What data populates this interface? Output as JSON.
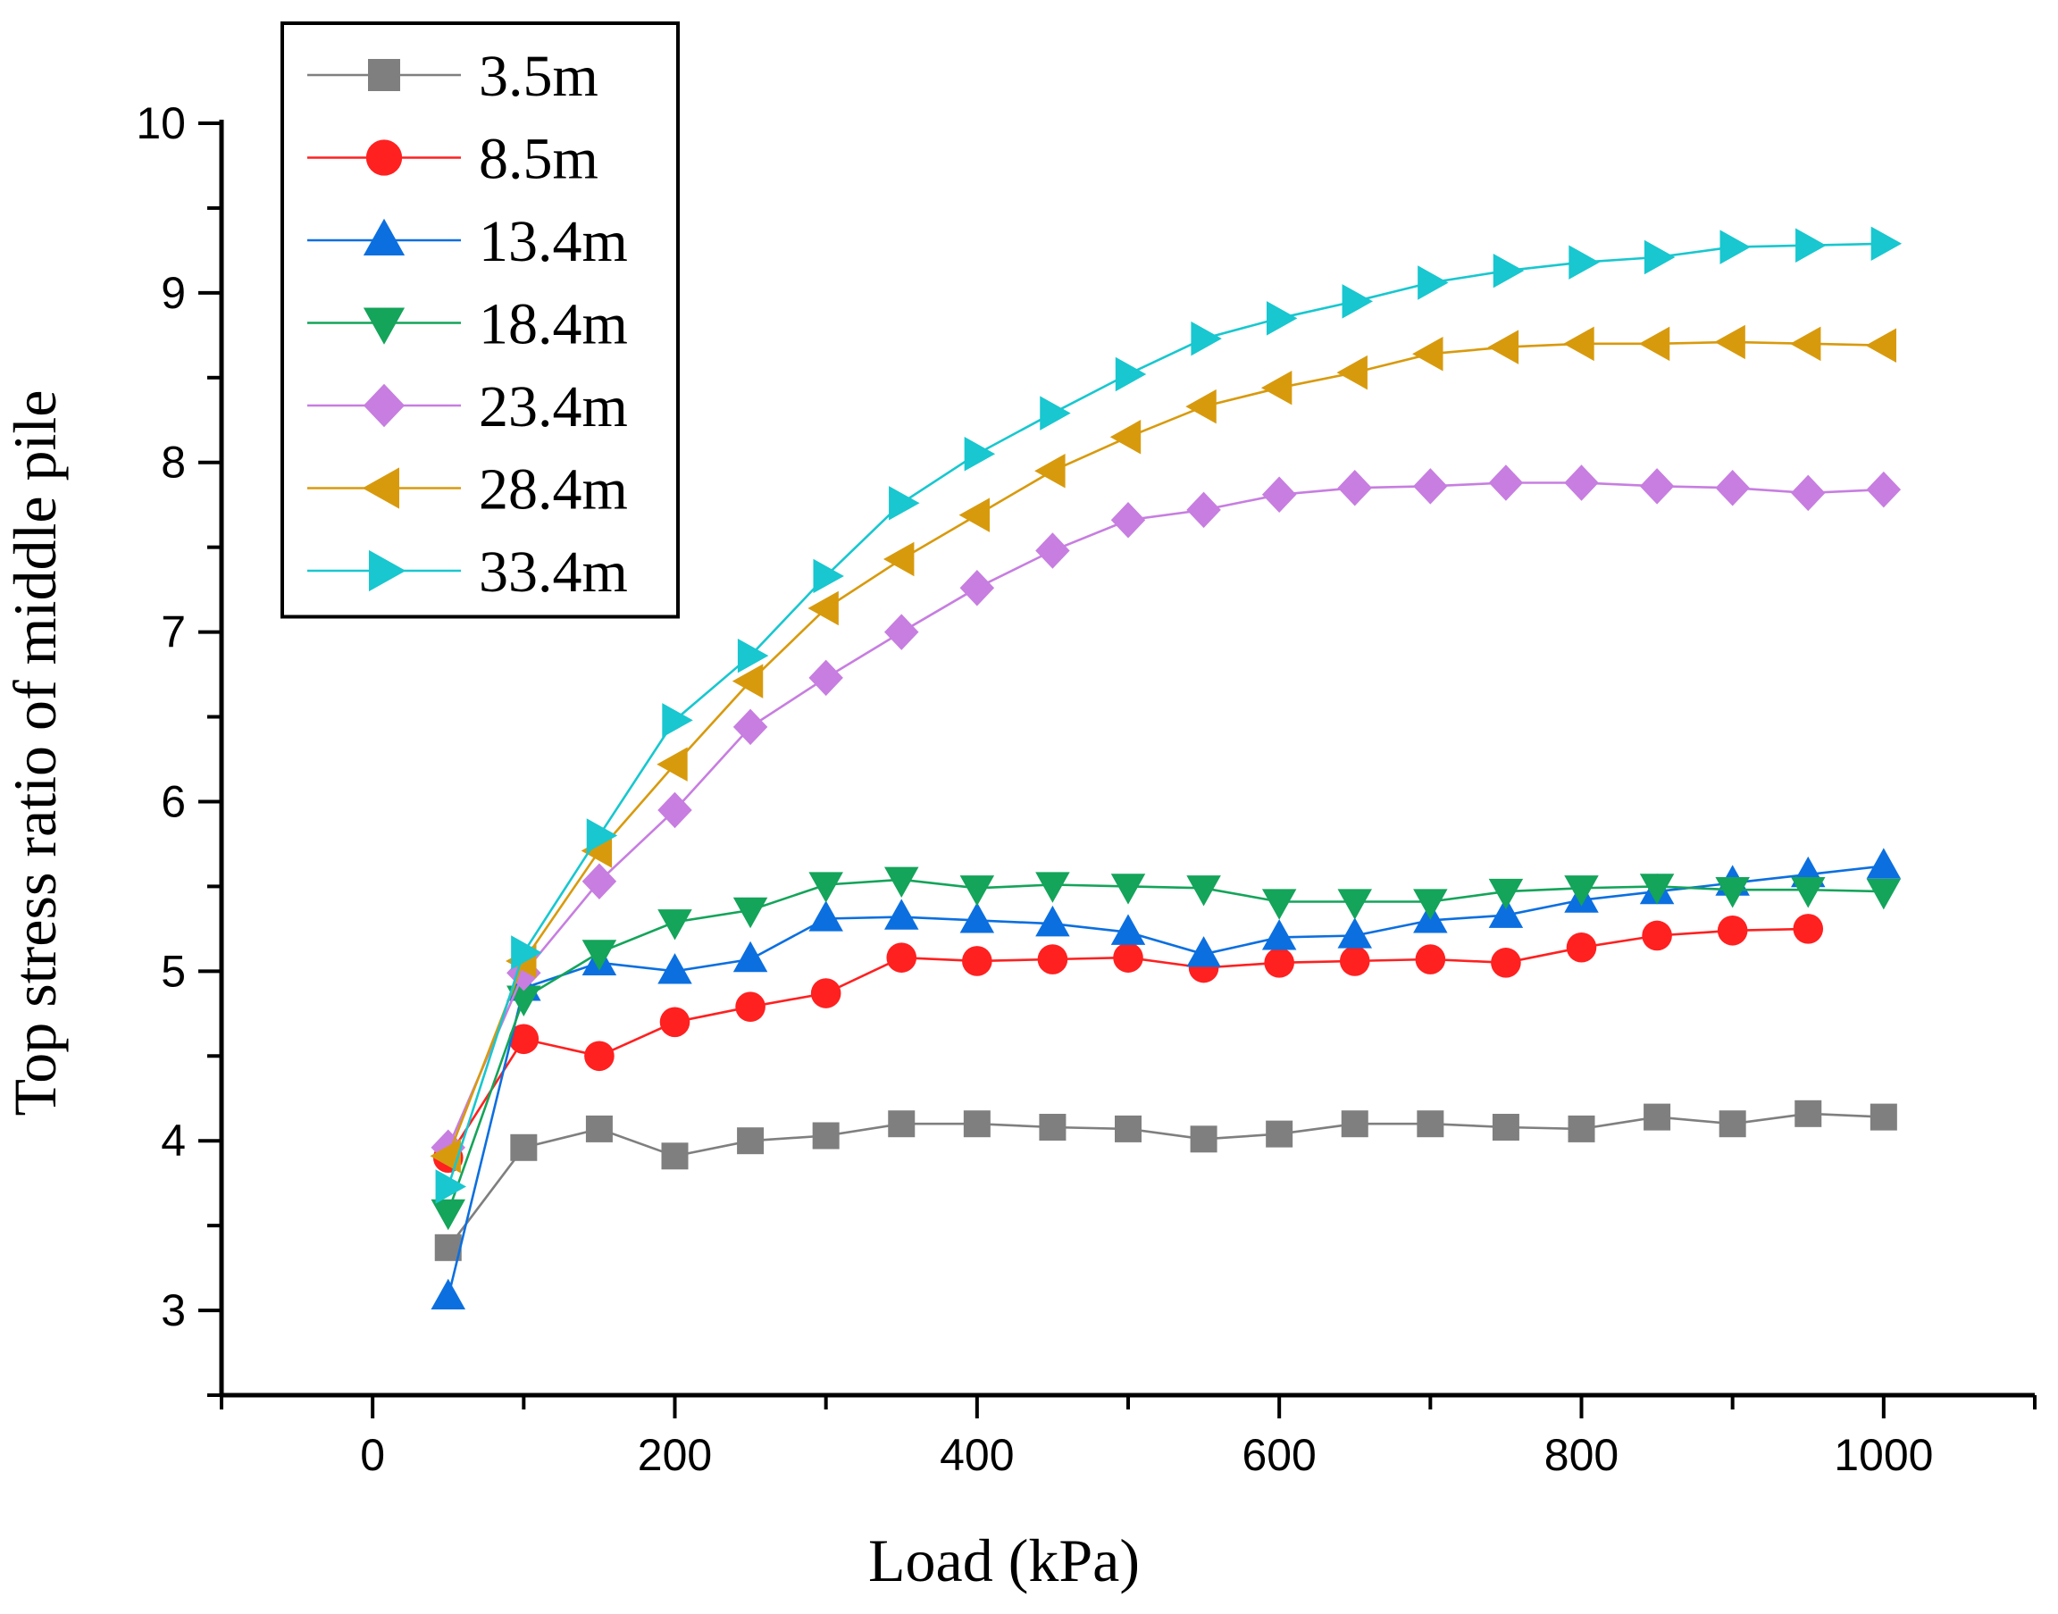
{
  "chart_data": {
    "type": "line",
    "title": "",
    "xlabel": "Load (kPa)",
    "ylabel": "Top stress ratio of middle pile",
    "xlim": [
      -100,
      1100
    ],
    "ylim": [
      2.5,
      10
    ],
    "xticks": [
      0,
      200,
      400,
      600,
      800,
      1000
    ],
    "yticks": [
      3,
      4,
      5,
      6,
      7,
      8,
      9,
      10
    ],
    "legend_position": "top-left",
    "x": [
      50,
      100,
      150,
      200,
      250,
      300,
      350,
      400,
      450,
      500,
      550,
      600,
      650,
      700,
      750,
      800,
      850,
      900,
      950,
      1000
    ],
    "series": [
      {
        "name": "3.5m",
        "color": "#7f7f7f",
        "marker": "square",
        "values": [
          3.37,
          3.96,
          4.07,
          3.91,
          4.0,
          4.03,
          4.1,
          4.1,
          4.08,
          4.07,
          4.01,
          4.04,
          4.1,
          4.1,
          4.08,
          4.07,
          4.14,
          4.1,
          4.16,
          4.14
        ]
      },
      {
        "name": "8.5m",
        "color": "#ff2020",
        "marker": "circle",
        "values": [
          3.9,
          4.6,
          4.5,
          4.7,
          4.79,
          4.87,
          5.08,
          5.06,
          5.07,
          5.08,
          5.02,
          5.05,
          5.06,
          5.07,
          5.05,
          5.14,
          5.21,
          5.24,
          5.25,
          null
        ]
      },
      {
        "name": "13.4m",
        "color": "#0b6fe0",
        "marker": "triangle-up",
        "values": [
          3.08,
          4.9,
          5.05,
          5.0,
          5.07,
          5.31,
          5.32,
          5.3,
          5.28,
          5.23,
          5.1,
          5.2,
          5.21,
          5.3,
          5.33,
          5.42,
          5.47,
          5.52,
          5.57,
          5.62
        ]
      },
      {
        "name": "18.4m",
        "color": "#14a45a",
        "marker": "triangle-down",
        "values": [
          3.58,
          4.84,
          5.11,
          5.29,
          5.36,
          5.51,
          5.54,
          5.49,
          5.51,
          5.5,
          5.49,
          5.41,
          5.41,
          5.41,
          5.47,
          5.49,
          5.5,
          5.48,
          5.48,
          5.47
        ]
      },
      {
        "name": "23.4m",
        "color": "#c77ee0",
        "marker": "diamond",
        "values": [
          3.96,
          4.99,
          5.53,
          5.95,
          6.44,
          6.73,
          7.0,
          7.26,
          7.48,
          7.66,
          7.72,
          7.81,
          7.85,
          7.86,
          7.88,
          7.88,
          7.86,
          7.85,
          7.82,
          7.84
        ]
      },
      {
        "name": "28.4m",
        "color": "#d89a0d",
        "marker": "triangle-left",
        "values": [
          3.91,
          5.06,
          5.71,
          6.22,
          6.71,
          7.14,
          7.43,
          7.69,
          7.95,
          8.15,
          8.33,
          8.44,
          8.53,
          8.64,
          8.68,
          8.7,
          8.7,
          8.71,
          8.7,
          8.69
        ]
      },
      {
        "name": "33.4m",
        "color": "#18c7cf",
        "marker": "triangle-right",
        "values": [
          3.73,
          5.11,
          5.8,
          6.48,
          6.86,
          7.33,
          7.76,
          8.05,
          8.29,
          8.52,
          8.73,
          8.85,
          8.95,
          9.06,
          9.13,
          9.18,
          9.21,
          9.27,
          9.28,
          9.29
        ]
      }
    ]
  }
}
